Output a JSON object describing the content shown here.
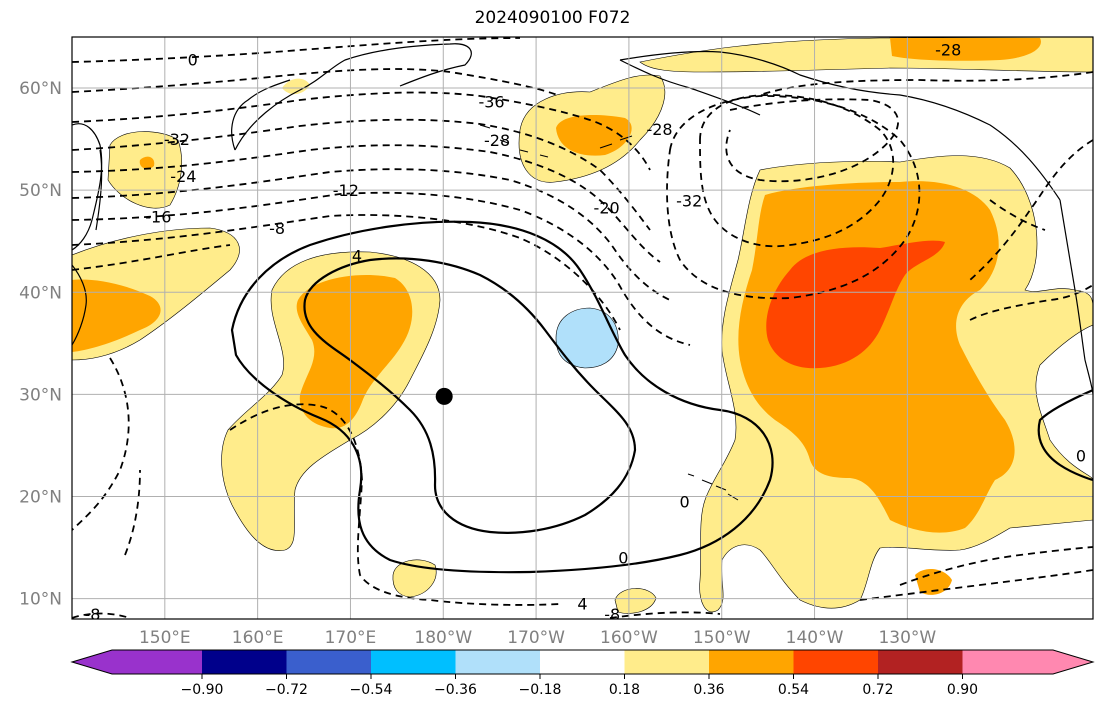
{
  "title": "2024090100 F072",
  "map": {
    "lon_range": [
      140,
      250
    ],
    "lat_range": [
      8,
      65
    ],
    "lat_ticks": [
      {
        "value": 10,
        "label": "10°N"
      },
      {
        "value": 20,
        "label": "20°N"
      },
      {
        "value": 30,
        "label": "30°N"
      },
      {
        "value": 40,
        "label": "40°N"
      },
      {
        "value": 50,
        "label": "50°N"
      },
      {
        "value": 60,
        "label": "60°N"
      }
    ],
    "lon_ticks": [
      {
        "value": 150,
        "label": "150°E"
      },
      {
        "value": 160,
        "label": "160°E"
      },
      {
        "value": 170,
        "label": "170°E"
      },
      {
        "value": 180,
        "label": "180°W"
      },
      {
        "value": 190,
        "label": "170°W"
      },
      {
        "value": 200,
        "label": "160°W"
      },
      {
        "value": 210,
        "label": "150°W"
      },
      {
        "value": 220,
        "label": "140°W"
      },
      {
        "value": 230,
        "label": "130°W"
      }
    ],
    "grid": true,
    "center_marker": {
      "lon": 180.1,
      "lat": 29.8,
      "color": "#000000"
    },
    "contour_labels": [
      {
        "text": "0",
        "lon": 153.0,
        "lat": 62.8
      },
      {
        "text": "-36",
        "lon": 185.2,
        "lat": 58.7
      },
      {
        "text": "-32",
        "lon": 151.3,
        "lat": 55.0
      },
      {
        "text": "-28",
        "lon": 185.8,
        "lat": 54.9
      },
      {
        "text": "-28",
        "lon": 203.3,
        "lat": 56.0
      },
      {
        "text": "-28",
        "lon": 234.4,
        "lat": 63.8
      },
      {
        "text": "-24",
        "lon": 152.0,
        "lat": 51.4
      },
      {
        "text": "-20",
        "lon": 197.6,
        "lat": 48.3
      },
      {
        "text": "-32",
        "lon": 206.5,
        "lat": 49.0
      },
      {
        "text": "-16",
        "lon": 149.3,
        "lat": 47.4
      },
      {
        "text": "-12",
        "lon": 169.5,
        "lat": 50.0
      },
      {
        "text": "-8",
        "lon": 162.1,
        "lat": 46.3
      },
      {
        "text": "4",
        "lon": 170.7,
        "lat": 43.6
      },
      {
        "text": "0",
        "lon": 199.4,
        "lat": 14.0
      },
      {
        "text": "0",
        "lon": 206.0,
        "lat": 19.5
      },
      {
        "text": "0",
        "lon": 248.7,
        "lat": 24.0
      },
      {
        "text": "4",
        "lon": 195.0,
        "lat": 9.5
      },
      {
        "text": "-8",
        "lon": 142.2,
        "lat": 8.5
      },
      {
        "text": "-8",
        "lon": 198.2,
        "lat": 8.5
      }
    ]
  },
  "colorbar": {
    "colors": [
      "#9932cc",
      "#00008b",
      "#3a5fcd",
      "#00bfff",
      "#b0e0fa",
      "#ffffff",
      "#ffec8b",
      "#ffa500",
      "#ff4500",
      "#b22222",
      "#ff88b0"
    ],
    "tick_labels": [
      "−0.90",
      "−0.72",
      "−0.54",
      "−0.36",
      "−0.18",
      "0.18",
      "0.36",
      "0.54",
      "0.72",
      "0.90"
    ]
  },
  "colors": {
    "light_yellow": "#ffec8b",
    "orange": "#ffa500",
    "red_orange": "#ff4500",
    "light_blue": "#b0e0fa",
    "grid": "#b0b0b0"
  }
}
